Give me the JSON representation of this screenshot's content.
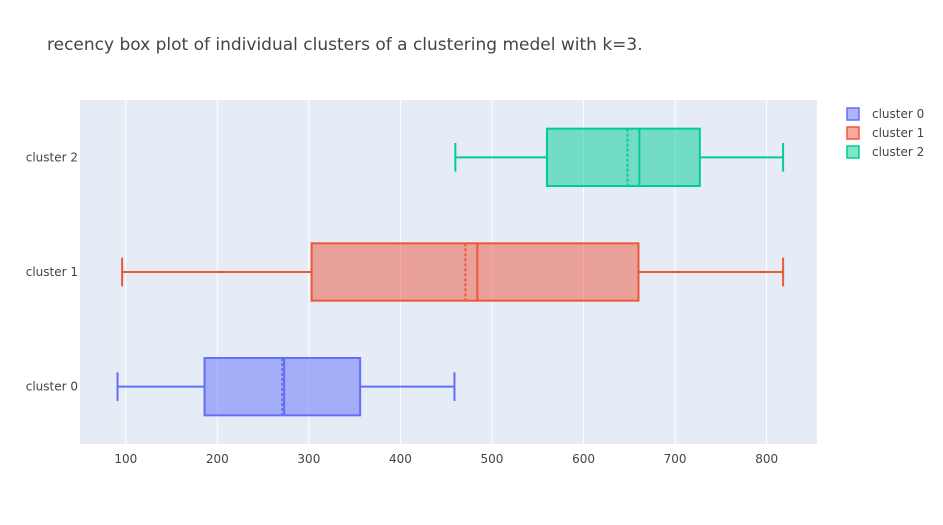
{
  "chart_data": {
    "type": "box",
    "orientation": "horizontal",
    "title": "recency box plot of individual clusters of a clustering medel with k=3.",
    "xlabel": "",
    "ylabel": "",
    "xlim": [
      50,
      855
    ],
    "x_ticks": [
      100,
      200,
      300,
      400,
      500,
      600,
      700,
      800
    ],
    "x_tick_labels": [
      "100",
      "200",
      "300",
      "400",
      "500",
      "600",
      "700",
      "800"
    ],
    "grid": true,
    "legend_position": "top-right",
    "categories": [
      "cluster 0",
      "cluster 1",
      "cluster 2"
    ],
    "series": [
      {
        "name": "cluster 0",
        "color": "#636efa",
        "min": 91,
        "q1": 186,
        "median": 273,
        "mean": 271,
        "q3": 356,
        "max": 459
      },
      {
        "name": "cluster 1",
        "color": "#ef553b",
        "min": 96,
        "q1": 303,
        "median": 484,
        "mean": 471,
        "q3": 660,
        "max": 818
      },
      {
        "name": "cluster 2",
        "color": "#00cc96",
        "min": 460,
        "q1": 560,
        "median": 661,
        "mean": 648,
        "q3": 727,
        "max": 818
      }
    ]
  }
}
